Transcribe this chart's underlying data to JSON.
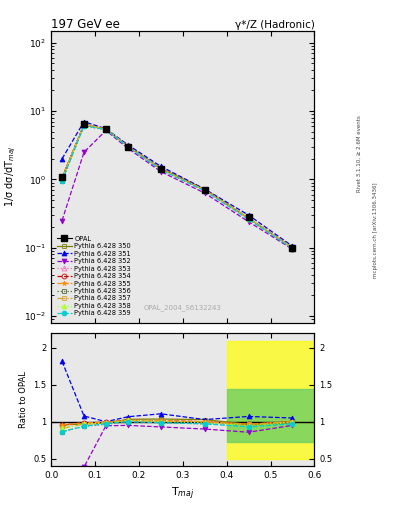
{
  "title": "197 GeV ee",
  "title_right": "γ*/Z (Hadronic)",
  "ylabel_main": "1/σ dσ/dT$_{maj}$",
  "ylabel_ratio": "Ratio to OPAL",
  "xlabel": "T$_{maj}$",
  "watermark": "OPAL_2004_S6132243",
  "right_label": "mcplots.cern.ch [arXiv:1306.3436]",
  "right_label2": "Rivet 3.1.10, ≥ 2.6M events",
  "opal_x": [
    0.025,
    0.075,
    0.125,
    0.175,
    0.25,
    0.35,
    0.45,
    0.55
  ],
  "opal_y": [
    1.1,
    6.5,
    5.5,
    3.0,
    1.4,
    0.7,
    0.28,
    0.1
  ],
  "opal_yerr": [
    0.05,
    0.3,
    0.3,
    0.15,
    0.08,
    0.04,
    0.02,
    0.01
  ],
  "py350_x": [
    0.025,
    0.075,
    0.125,
    0.175,
    0.25,
    0.35,
    0.45,
    0.55
  ],
  "py350_y": [
    1.05,
    6.3,
    5.4,
    3.1,
    1.45,
    0.72,
    0.27,
    0.1
  ],
  "py351_x": [
    0.025,
    0.075,
    0.125,
    0.175,
    0.25,
    0.35,
    0.45,
    0.55
  ],
  "py351_y": [
    2.0,
    7.0,
    5.5,
    3.2,
    1.55,
    0.72,
    0.3,
    0.105
  ],
  "py352_x": [
    0.025,
    0.075,
    0.125,
    0.175,
    0.25,
    0.35,
    0.45,
    0.55
  ],
  "py352_y": [
    0.25,
    2.5,
    5.2,
    2.85,
    1.3,
    0.63,
    0.24,
    0.095
  ],
  "py353_x": [
    0.025,
    0.075,
    0.125,
    0.175,
    0.25,
    0.35,
    0.45,
    0.55
  ],
  "py353_y": [
    1.05,
    6.4,
    5.45,
    3.05,
    1.42,
    0.7,
    0.27,
    0.1
  ],
  "py354_x": [
    0.025,
    0.075,
    0.125,
    0.175,
    0.25,
    0.35,
    0.45,
    0.55
  ],
  "py354_y": [
    1.05,
    6.4,
    5.45,
    3.05,
    1.42,
    0.7,
    0.27,
    0.1
  ],
  "py355_x": [
    0.025,
    0.075,
    0.125,
    0.175,
    0.25,
    0.35,
    0.45,
    0.55
  ],
  "py355_y": [
    1.05,
    6.4,
    5.45,
    3.05,
    1.42,
    0.7,
    0.27,
    0.1
  ],
  "py356_x": [
    0.025,
    0.075,
    0.125,
    0.175,
    0.25,
    0.35,
    0.45,
    0.55
  ],
  "py356_y": [
    0.95,
    6.1,
    5.3,
    3.0,
    1.38,
    0.68,
    0.265,
    0.098
  ],
  "py357_x": [
    0.025,
    0.075,
    0.125,
    0.175,
    0.25,
    0.35,
    0.45,
    0.55
  ],
  "py357_y": [
    1.0,
    6.3,
    5.4,
    3.05,
    1.41,
    0.7,
    0.27,
    0.1
  ],
  "py358_x": [
    0.025,
    0.075,
    0.125,
    0.175,
    0.25,
    0.35,
    0.45,
    0.55
  ],
  "py358_y": [
    1.0,
    6.3,
    5.4,
    3.05,
    1.4,
    0.69,
    0.265,
    0.099
  ],
  "py359_x": [
    0.025,
    0.075,
    0.125,
    0.175,
    0.25,
    0.35,
    0.45,
    0.55
  ],
  "py359_y": [
    0.95,
    6.1,
    5.35,
    3.0,
    1.38,
    0.68,
    0.26,
    0.097
  ],
  "ratio350_y": [
    0.955,
    0.969,
    0.982,
    1.033,
    1.036,
    1.029,
    0.964,
    1.0
  ],
  "ratio351_y": [
    1.818,
    1.077,
    1.0,
    1.067,
    1.107,
    1.029,
    1.071,
    1.05
  ],
  "ratio352_y": [
    0.227,
    0.385,
    0.945,
    0.95,
    0.929,
    0.9,
    0.857,
    0.95
  ],
  "ratio353_y": [
    0.955,
    0.985,
    0.991,
    1.017,
    1.014,
    1.0,
    0.964,
    1.0
  ],
  "ratio354_y": [
    0.955,
    0.985,
    0.991,
    1.017,
    1.014,
    1.0,
    0.964,
    1.0
  ],
  "ratio355_y": [
    0.955,
    0.985,
    0.991,
    1.017,
    1.014,
    1.0,
    0.964,
    1.0
  ],
  "ratio356_y": [
    0.864,
    0.938,
    0.964,
    1.0,
    0.986,
    0.971,
    0.946,
    0.98
  ],
  "ratio357_y": [
    0.909,
    0.969,
    0.982,
    1.017,
    1.007,
    1.0,
    0.964,
    1.0
  ],
  "ratio358_y": [
    0.909,
    0.969,
    0.982,
    1.017,
    1.0,
    0.986,
    0.946,
    0.99
  ],
  "ratio359_y": [
    0.864,
    0.938,
    0.973,
    1.0,
    0.986,
    0.971,
    0.929,
    0.97
  ],
  "ylim_main": [
    0.008,
    150
  ],
  "ylim_ratio": [
    0.4,
    2.2
  ],
  "xlim": [
    0.0,
    0.6
  ],
  "bg_color": "#e8e8e8"
}
